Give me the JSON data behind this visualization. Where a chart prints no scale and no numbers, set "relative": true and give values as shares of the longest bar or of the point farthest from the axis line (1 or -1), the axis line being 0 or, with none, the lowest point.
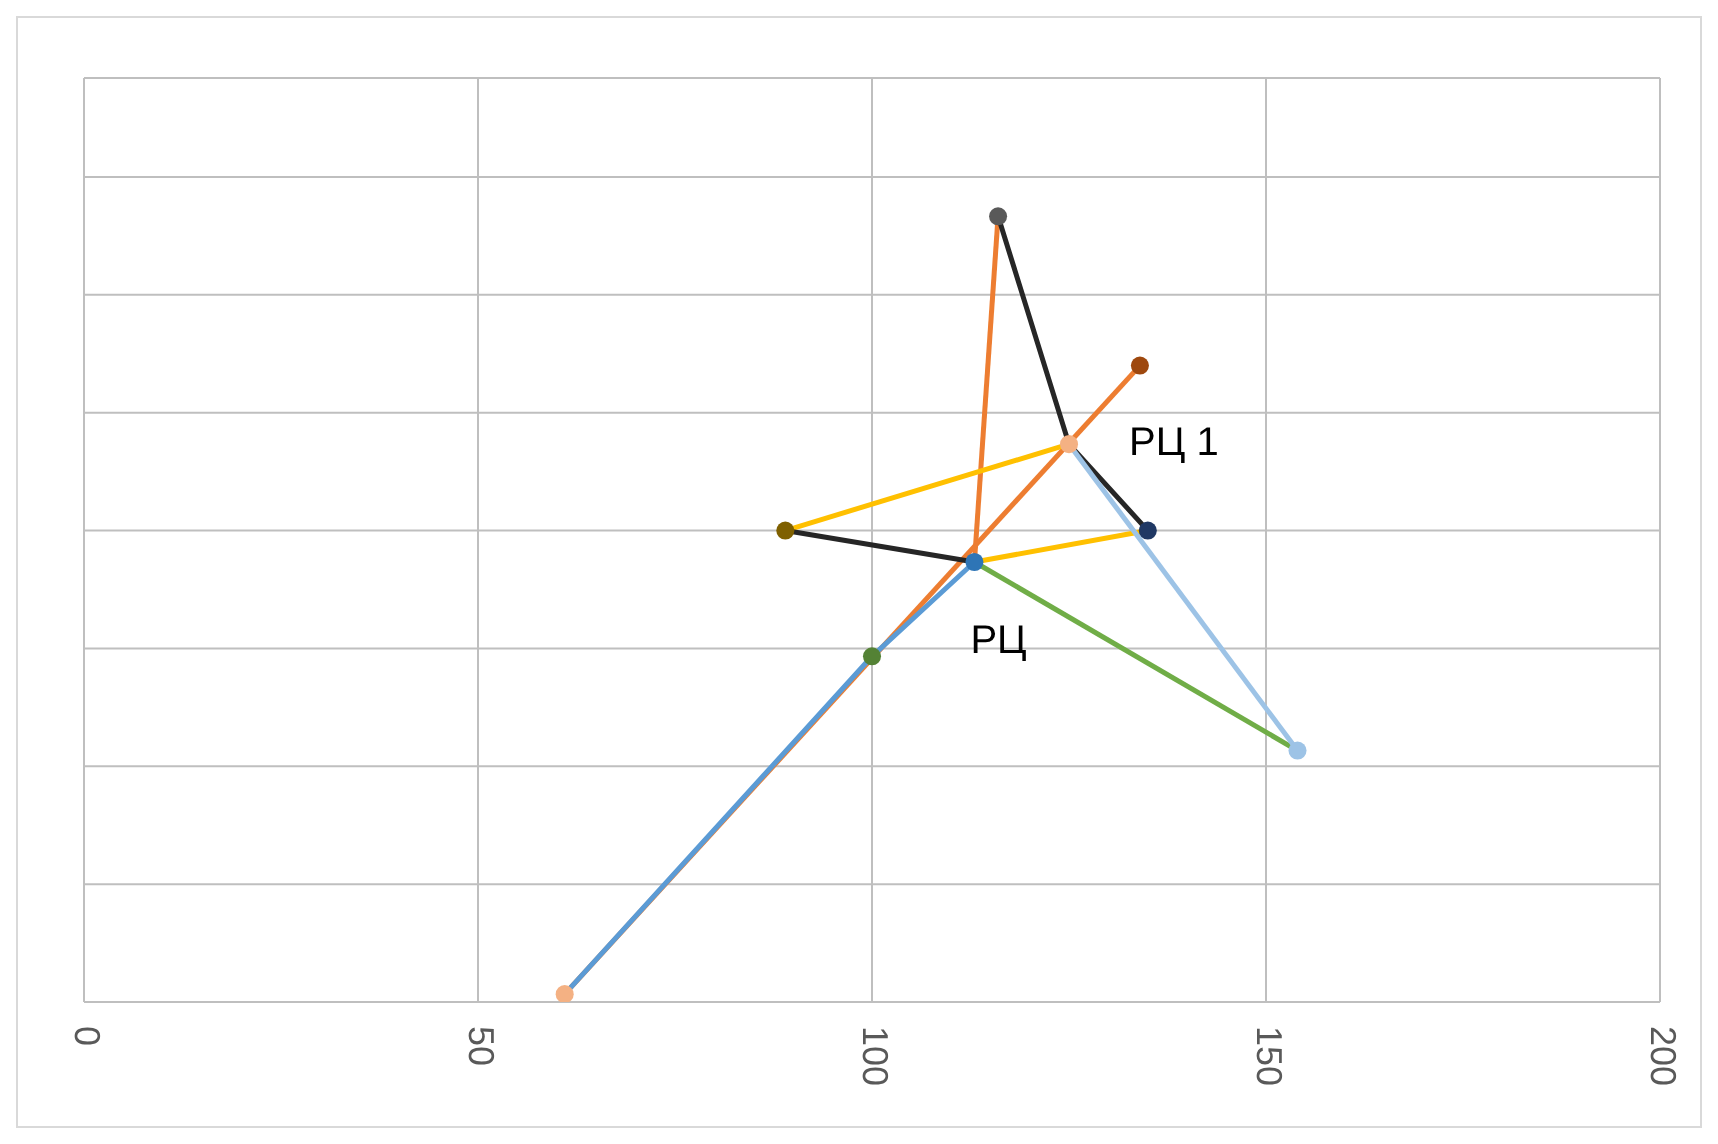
{
  "chart_data": {
    "type": "scatter",
    "relative": true,
    "xlim": [
      0,
      200
    ],
    "xticks": [
      0,
      50,
      100,
      150,
      200
    ],
    "grid": true,
    "annotations": [
      {
        "text": "РЦ",
        "x": 113,
        "y": 0.56
      },
      {
        "text": "РЦ 1",
        "x": 125,
        "y": 0.71
      }
    ],
    "series": [
      {
        "type": "line",
        "color": "#ed7d31",
        "x": [
          61,
          134
        ],
        "values": [
          0.01,
          0.81
        ]
      },
      {
        "type": "line",
        "color": "#5b9bd5",
        "x": [
          61,
          100,
          113
        ],
        "values": [
          0.01,
          0.44,
          0.56
        ]
      },
      {
        "type": "line",
        "color": "#ed7d31",
        "x": [
          113,
          116
        ],
        "values": [
          0.56,
          1
        ]
      },
      {
        "type": "line",
        "color": "#262626",
        "x": [
          116,
          125,
          135
        ],
        "values": [
          1,
          0.71,
          0.6
        ]
      },
      {
        "type": "line",
        "color": "#ffc000",
        "x": [
          89,
          125
        ],
        "values": [
          0.6,
          0.71
        ]
      },
      {
        "type": "line",
        "color": "#262626",
        "x": [
          89,
          113
        ],
        "values": [
          0.6,
          0.56
        ]
      },
      {
        "type": "line",
        "color": "#ffc000",
        "x": [
          113,
          135
        ],
        "values": [
          0.56,
          0.6
        ]
      },
      {
        "type": "line",
        "color": "#70ad47",
        "x": [
          113,
          154
        ],
        "values": [
          0.56,
          0.32
        ]
      },
      {
        "type": "line",
        "color": "#9dc3e6",
        "x": [
          125,
          154
        ],
        "values": [
          0.71,
          0.32
        ]
      },
      {
        "marker": "circle",
        "x": [
          61,
          100,
          113,
          125,
          134,
          116,
          135,
          89,
          154
        ],
        "values": [
          0.01,
          0.44,
          0.56,
          0.71,
          0.81,
          1,
          0.6,
          0.6,
          0.32
        ],
        "colors": [
          "#f4b183",
          "#548235",
          "#2e75b6",
          "#f4b183",
          "#9e480e",
          "#595959",
          "#203864",
          "#7f6000",
          "#9dc3e6"
        ]
      }
    ]
  }
}
